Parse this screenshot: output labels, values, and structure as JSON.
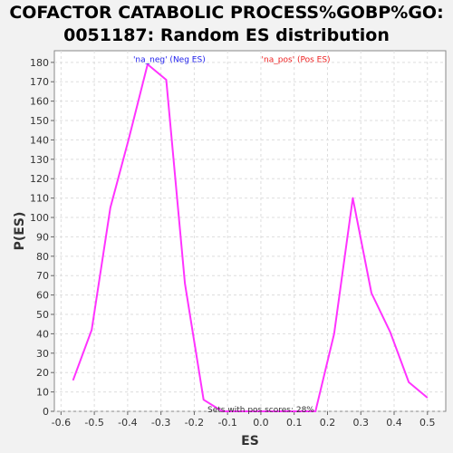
{
  "chart_data": {
    "type": "line",
    "title_lines": [
      "COFACTOR CATABOLIC PROCESS%GOBP%GO:",
      "0051187: Random ES distribution"
    ],
    "xlabel": "ES",
    "ylabel": "P(ES)",
    "xlim": [
      -0.62,
      0.555
    ],
    "ylim": [
      0,
      186
    ],
    "xticks": [
      -0.6,
      -0.5,
      -0.4,
      -0.3,
      -0.2,
      -0.1,
      0.0,
      0.1,
      0.2,
      0.3,
      0.4,
      0.5
    ],
    "xtick_labels": [
      "-0.6",
      "-0.5",
      "-0.4",
      "-0.3",
      "-0.2",
      "-0.1",
      "0.0",
      "0.1",
      "0.2",
      "0.3",
      "0.4",
      "0.5"
    ],
    "yticks": [
      0,
      10,
      20,
      30,
      40,
      50,
      60,
      70,
      80,
      90,
      100,
      110,
      120,
      130,
      140,
      150,
      160,
      170,
      180
    ],
    "ytick_labels": [
      "0",
      "10",
      "20",
      "30",
      "40",
      "50",
      "60",
      "70",
      "80",
      "90",
      "100",
      "110",
      "120",
      "130",
      "140",
      "150",
      "160",
      "170",
      "180"
    ],
    "grid": true,
    "series": [
      {
        "name": "Random ES",
        "color": "#ff33ff",
        "x": [
          -0.564,
          -0.508,
          -0.452,
          -0.396,
          -0.34,
          -0.284,
          -0.228,
          -0.172,
          -0.116,
          0.164,
          0.22,
          0.276,
          0.332,
          0.388,
          0.444,
          0.5
        ],
        "y": [
          16,
          42,
          105,
          141,
          179,
          171,
          66,
          6,
          0,
          0,
          40,
          110,
          61,
          41,
          15,
          7
        ]
      }
    ],
    "annotations": [
      {
        "text": "'na_neg' (Neg ES)",
        "color": "#2222ee",
        "x": -0.275,
        "y": 182
      },
      {
        "text": "'na_pos' (Pos ES)",
        "color": "#ee2222",
        "x": 0.105,
        "y": 182
      },
      {
        "text": "Sets with pos scores: 28%",
        "color": "#333333",
        "x": 0.0,
        "y": 1.5
      }
    ]
  }
}
